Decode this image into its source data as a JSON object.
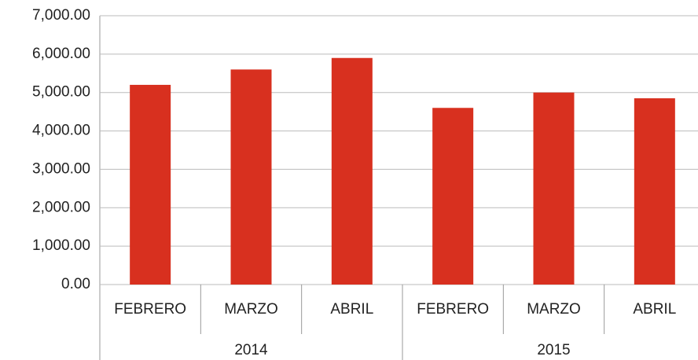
{
  "chart_data": {
    "type": "bar",
    "categories": [
      "FEBRERO",
      "MARZO",
      "ABRIL",
      "FEBRERO",
      "MARZO",
      "ABRIL"
    ],
    "groups": [
      "2014",
      "2015"
    ],
    "values": [
      5200,
      5600,
      5900,
      4600,
      5000,
      4850
    ],
    "color": "#d8301f",
    "ylim": [
      0,
      7000
    ],
    "yticks": [
      {
        "value": 0,
        "label": "0.00"
      },
      {
        "value": 1000,
        "label": "1,000.00"
      },
      {
        "value": 2000,
        "label": "2,000.00"
      },
      {
        "value": 3000,
        "label": "3,000.00"
      },
      {
        "value": 4000,
        "label": "4,000.00"
      },
      {
        "value": 5000,
        "label": "5,000.00"
      },
      {
        "value": 6000,
        "label": "6,000.00"
      },
      {
        "value": 7000,
        "label": "7,000.00"
      }
    ],
    "grid": true
  }
}
